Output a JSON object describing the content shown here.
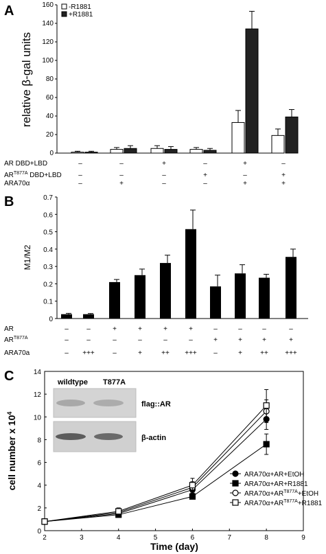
{
  "panels": {
    "a": "A",
    "b": "B",
    "c": "C"
  },
  "blot": {
    "lane1": "wildtype",
    "lane2": "T877A",
    "band1": "flag::AR",
    "band2": "β-actin"
  },
  "colors": {
    "minus_r1881": "#ffffff",
    "plus_r1881": "#222222",
    "bar_b": "#000000",
    "blot_bg": "#cfcfcf"
  },
  "chart_data": [
    {
      "type": "bar",
      "panel": "A",
      "ylabel": "relative β-gal units",
      "ylim": [
        0,
        160
      ],
      "yticks": [
        0,
        20,
        40,
        60,
        80,
        100,
        120,
        140,
        160
      ],
      "legend_position": "top-left",
      "groups": 6,
      "series": [
        {
          "name": "-R1881",
          "values": [
            1,
            4,
            5,
            4,
            33,
            19
          ],
          "errors": [
            1,
            2,
            3,
            2,
            13,
            7
          ]
        },
        {
          "name": "+R1881",
          "values": [
            1,
            5,
            4,
            3,
            134,
            39
          ],
          "errors": [
            1,
            3,
            3,
            2,
            19,
            8
          ]
        }
      ],
      "conditions": [
        {
          "label": "AR DBD+LBD",
          "sup": "",
          "signs": [
            "–",
            "–",
            "+",
            "–",
            "+",
            "–"
          ]
        },
        {
          "label": "AR",
          "sup": "T877A",
          "suffix": " DBD+LBD",
          "signs": [
            "–",
            "–",
            "–",
            "+",
            "–",
            "+"
          ]
        },
        {
          "label": "ARA70α",
          "sup": "",
          "signs": [
            "–",
            "+",
            "–",
            "–",
            "+",
            "+"
          ]
        }
      ]
    },
    {
      "type": "bar",
      "panel": "B",
      "ylabel": "M1/M2",
      "ylim": [
        0,
        0.7
      ],
      "yticks": [
        "0",
        "0.1",
        "0.2",
        "0.3",
        "0.4",
        "0.5",
        "0.6",
        "0.7"
      ],
      "values": [
        0.025,
        0.025,
        0.21,
        0.25,
        0.32,
        0.515,
        0.185,
        0.26,
        0.235,
        0.355
      ],
      "errors": [
        0.005,
        0.004,
        0.015,
        0.035,
        0.045,
        0.11,
        0.065,
        0.05,
        0.02,
        0.045
      ],
      "conditions": [
        {
          "label": "AR",
          "sup": "",
          "signs": [
            "–",
            "–",
            "+",
            "+",
            "+",
            "+",
            "–",
            "–",
            "–",
            "–"
          ]
        },
        {
          "label": "AR",
          "sup": "T877A",
          "signs": [
            "–",
            "–",
            "–",
            "–",
            "–",
            "–",
            "+",
            "+",
            "+",
            "+"
          ]
        },
        {
          "label": "ARA70a",
          "sup": "",
          "signs": [
            "–",
            "+++",
            "–",
            "+",
            "++",
            "+++",
            "–",
            "+",
            "++",
            "+++"
          ]
        }
      ]
    },
    {
      "type": "line",
      "panel": "C",
      "xlabel": "Time (day)",
      "ylabel": "cell number x 10",
      "ylabel_sup": "4",
      "xlim": [
        2,
        9
      ],
      "ylim": [
        0,
        14
      ],
      "xticks": [
        2,
        3,
        4,
        5,
        6,
        7,
        8,
        9
      ],
      "yticks": [
        0,
        2,
        4,
        6,
        8,
        10,
        12,
        14
      ],
      "legend_position": "right",
      "x": [
        2,
        4,
        6,
        8
      ],
      "series": [
        {
          "name": "ARA70α+AR+EtOH",
          "marker": "circle-filled",
          "values": [
            0.8,
            1.5,
            3.6,
            9.8
          ],
          "errors": [
            0.1,
            0.2,
            0.3,
            0.9
          ]
        },
        {
          "name": "ARA70α+AR+R1881",
          "marker": "square-filled",
          "values": [
            0.8,
            1.4,
            3.0,
            7.6
          ],
          "errors": [
            0.1,
            0.2,
            0.2,
            0.9
          ]
        },
        {
          "name": "ARA70α+AR",
          "name_sup": "T877A",
          "name_suffix": "+EtOH",
          "marker": "circle-open",
          "values": [
            0.8,
            1.6,
            3.8,
            10.5
          ],
          "errors": [
            0.1,
            0.2,
            0.5,
            1.0
          ]
        },
        {
          "name": "ARA70α+AR",
          "name_sup": "T877A",
          "name_suffix": "+R1881",
          "marker": "square-open",
          "values": [
            0.8,
            1.7,
            4.0,
            11.0
          ],
          "errors": [
            0.1,
            0.3,
            0.6,
            1.4
          ]
        }
      ]
    }
  ]
}
